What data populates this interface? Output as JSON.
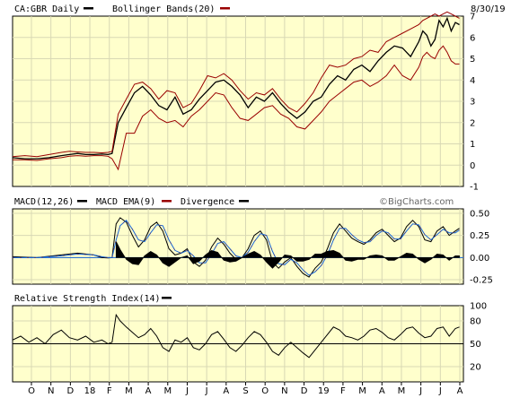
{
  "header": {
    "symbol_label": "CA:GBR Daily",
    "bollinger_label": "Bollinger Bands(20)",
    "date_label": "8/30/19"
  },
  "branding": "©BigCharts.com",
  "colors": {
    "panel_bg": "#ffffcc",
    "grid": "#d8d8b4",
    "price": "#000000",
    "bollinger": "#990000",
    "macd": "#000000",
    "macd_ema": "#1565d8",
    "macd_ema_alt": "#990000",
    "histogram": "#000000"
  },
  "chart_data": [
    {
      "type": "line",
      "panel": "price",
      "title": "CA:GBR Daily",
      "x_ticks": [
        "O",
        "N",
        "D",
        "18",
        "F",
        "M",
        "A",
        "M",
        "J",
        "J",
        "A",
        "S",
        "O",
        "N",
        "D",
        "19",
        "F",
        "M",
        "A",
        "M",
        "J",
        "J",
        "A"
      ],
      "ylim": [
        -1,
        7
      ],
      "y_ticks": [
        -1,
        0,
        1,
        2,
        3,
        4,
        5,
        6,
        7
      ],
      "grid": true,
      "series": [
        {
          "name": "CA:GBR Daily",
          "color": "#000000",
          "x": [
            0,
            3,
            6,
            9,
            12,
            14,
            16,
            18,
            20,
            22,
            23.5,
            24.5,
            26,
            28,
            30,
            32,
            34,
            36,
            38,
            40,
            42,
            44,
            46,
            48,
            50,
            52,
            54,
            56,
            58,
            60,
            62,
            64,
            66,
            68,
            70,
            72,
            74,
            76,
            78,
            80,
            82,
            84,
            86,
            88,
            90,
            92,
            94,
            96,
            98,
            100,
            101,
            102,
            103,
            104,
            105,
            106,
            107,
            108,
            109,
            110
          ],
          "y": [
            0.35,
            0.3,
            0.3,
            0.35,
            0.45,
            0.5,
            0.55,
            0.5,
            0.5,
            0.52,
            0.5,
            0.55,
            2.0,
            2.7,
            3.4,
            3.7,
            3.3,
            2.8,
            2.6,
            3.2,
            2.4,
            2.6,
            3.1,
            3.5,
            3.9,
            4.0,
            3.7,
            3.3,
            2.7,
            3.2,
            3.0,
            3.4,
            2.9,
            2.5,
            2.2,
            2.5,
            3.0,
            3.2,
            3.8,
            4.2,
            4.0,
            4.5,
            4.7,
            4.4,
            4.9,
            5.3,
            5.6,
            5.5,
            5.1,
            5.8,
            6.3,
            6.1,
            5.6,
            5.9,
            6.8,
            6.5,
            6.9,
            6.3,
            6.7,
            6.6
          ]
        },
        {
          "name": "Bollinger Bands(20)",
          "color": "#990000",
          "x": [
            0,
            3,
            6,
            9,
            12,
            14,
            16,
            18,
            20,
            22,
            23.5,
            24.5,
            26,
            28,
            30,
            32,
            34,
            36,
            38,
            40,
            42,
            44,
            46,
            48,
            50,
            52,
            54,
            56,
            58,
            60,
            62,
            64,
            66,
            68,
            70,
            72,
            74,
            76,
            78,
            80,
            82,
            84,
            86,
            88,
            90,
            92,
            94,
            96,
            98,
            100,
            101,
            102,
            103,
            104,
            105,
            106,
            107,
            108,
            109,
            110
          ],
          "y": [
            0.4,
            0.45,
            0.4,
            0.5,
            0.6,
            0.65,
            0.62,
            0.6,
            0.6,
            0.58,
            0.6,
            0.65,
            2.4,
            3.1,
            3.8,
            3.9,
            3.6,
            3.1,
            3.5,
            3.4,
            2.7,
            2.9,
            3.5,
            4.2,
            4.1,
            4.3,
            4.0,
            3.5,
            3.1,
            3.4,
            3.3,
            3.6,
            3.1,
            2.7,
            2.5,
            2.9,
            3.4,
            4.1,
            4.7,
            4.6,
            4.7,
            5.0,
            5.1,
            5.4,
            5.3,
            5.8,
            6.0,
            6.2,
            6.4,
            6.6,
            6.8,
            6.9,
            7.0,
            7.1,
            7.0,
            7.1,
            7.2,
            7.1,
            7.0,
            6.9
          ]
        },
        {
          "name": "Bollinger Bands(20) lower",
          "color": "#990000",
          "x": [
            0,
            3,
            6,
            9,
            12,
            14,
            16,
            18,
            20,
            22,
            23.5,
            24.5,
            26,
            28,
            30,
            32,
            34,
            36,
            38,
            40,
            42,
            44,
            46,
            48,
            50,
            52,
            54,
            56,
            58,
            60,
            62,
            64,
            66,
            68,
            70,
            72,
            74,
            76,
            78,
            80,
            82,
            84,
            86,
            88,
            90,
            92,
            94,
            96,
            98,
            100,
            101,
            102,
            103,
            104,
            105,
            106,
            107,
            108,
            109,
            110
          ],
          "y": [
            0.25,
            0.25,
            0.22,
            0.3,
            0.35,
            0.42,
            0.45,
            0.42,
            0.45,
            0.45,
            0.42,
            0.3,
            -0.2,
            1.5,
            1.5,
            2.3,
            2.6,
            2.2,
            2.0,
            2.1,
            1.8,
            2.3,
            2.6,
            3.0,
            3.4,
            3.3,
            2.7,
            2.2,
            2.1,
            2.4,
            2.7,
            2.8,
            2.4,
            2.2,
            1.8,
            1.7,
            2.1,
            2.5,
            3.0,
            3.3,
            3.6,
            3.9,
            4.0,
            3.7,
            3.9,
            4.2,
            4.7,
            4.2,
            4.0,
            4.6,
            5.1,
            5.3,
            5.1,
            5.0,
            5.4,
            5.6,
            5.3,
            4.9,
            4.75,
            4.75
          ]
        }
      ]
    },
    {
      "type": "line",
      "panel": "macd",
      "title": "MACD(12,26)",
      "ylim": [
        -0.3,
        0.55
      ],
      "y_ticks": [
        -0.25,
        0.0,
        0.25,
        0.5
      ],
      "y_tick_labels": [
        "-0.25",
        "0.00",
        "0.25",
        "0.50"
      ],
      "grid": true,
      "series": [
        {
          "name": "MACD(12,26)",
          "color": "#000000",
          "x": [
            0,
            6,
            12,
            16,
            20,
            22,
            23.5,
            24.5,
            25.5,
            26.5,
            28,
            29.5,
            31,
            32.5,
            34,
            35.5,
            37,
            38.5,
            40,
            41.5,
            43,
            44.5,
            46,
            47.5,
            49,
            50.5,
            52,
            53.5,
            55,
            56.5,
            58,
            59.5,
            61,
            62.5,
            64,
            65.5,
            67,
            68.5,
            70,
            71.5,
            73,
            74.5,
            76,
            77.5,
            79,
            80.5,
            82,
            83.5,
            85,
            86.5,
            88,
            89.5,
            91,
            92.5,
            94,
            95.5,
            97,
            98.5,
            100,
            101.5,
            103,
            104.5,
            106,
            107.5,
            109,
            110
          ],
          "y": [
            0.01,
            0.0,
            0.03,
            0.05,
            0.03,
            0.0,
            -0.005,
            0.0,
            0.38,
            0.45,
            0.4,
            0.25,
            0.12,
            0.2,
            0.35,
            0.4,
            0.3,
            0.1,
            0.03,
            0.05,
            0.1,
            -0.05,
            -0.1,
            -0.03,
            0.12,
            0.22,
            0.15,
            0.05,
            -0.02,
            0.0,
            0.1,
            0.25,
            0.3,
            0.2,
            -0.05,
            -0.12,
            -0.05,
            0.0,
            -0.1,
            -0.18,
            -0.22,
            -0.12,
            -0.05,
            0.1,
            0.28,
            0.38,
            0.3,
            0.22,
            0.18,
            0.15,
            0.2,
            0.28,
            0.32,
            0.25,
            0.18,
            0.22,
            0.35,
            0.42,
            0.35,
            0.2,
            0.18,
            0.3,
            0.35,
            0.25,
            0.3,
            0.33
          ]
        },
        {
          "name": "MACD EMA(9)",
          "color": "#1565d8",
          "x": [
            0,
            6,
            12,
            16,
            20,
            22,
            23.5,
            24.5,
            25.5,
            26.5,
            28,
            29.5,
            31,
            32.5,
            34,
            35.5,
            37,
            38.5,
            40,
            41.5,
            43,
            44.5,
            46,
            47.5,
            49,
            50.5,
            52,
            53.5,
            55,
            56.5,
            58,
            59.5,
            61,
            62.5,
            64,
            65.5,
            67,
            68.5,
            70,
            71.5,
            73,
            74.5,
            76,
            77.5,
            79,
            80.5,
            82,
            83.5,
            85,
            86.5,
            88,
            89.5,
            91,
            92.5,
            94,
            95.5,
            97,
            98.5,
            100,
            101.5,
            103,
            104.5,
            106,
            107.5,
            109,
            110
          ],
          "y": [
            0.0,
            0.0,
            0.02,
            0.04,
            0.03,
            0.01,
            0.0,
            0.0,
            0.2,
            0.36,
            0.42,
            0.32,
            0.2,
            0.18,
            0.28,
            0.37,
            0.36,
            0.2,
            0.08,
            0.05,
            0.08,
            0.02,
            -0.06,
            -0.06,
            0.04,
            0.16,
            0.18,
            0.1,
            0.02,
            0.0,
            0.06,
            0.18,
            0.27,
            0.25,
            0.07,
            -0.07,
            -0.08,
            -0.02,
            -0.06,
            -0.14,
            -0.2,
            -0.16,
            -0.09,
            0.03,
            0.2,
            0.33,
            0.33,
            0.26,
            0.2,
            0.17,
            0.18,
            0.25,
            0.3,
            0.28,
            0.21,
            0.21,
            0.3,
            0.38,
            0.37,
            0.26,
            0.2,
            0.26,
            0.32,
            0.28,
            0.28,
            0.31
          ]
        },
        {
          "name": "Divergence",
          "color": "#000000",
          "style": "histogram",
          "x": [
            25.5,
            26.5,
            28,
            29.5,
            31,
            32.5,
            34,
            35.5,
            37,
            38.5,
            40,
            41.5,
            43,
            44.5,
            46,
            47.5,
            49,
            50.5,
            52,
            53.5,
            55,
            56.5,
            58,
            59.5,
            61,
            62.5,
            64,
            65.5,
            67,
            68.5,
            70,
            71.5,
            73,
            74.5,
            76,
            77.5,
            79,
            80.5,
            82,
            83.5,
            85,
            86.5,
            88,
            89.5,
            91,
            92.5,
            94,
            95.5,
            97,
            98.5,
            100,
            101.5,
            103,
            104.5,
            106,
            107.5,
            109,
            110
          ],
          "y": [
            0.18,
            0.09,
            -0.02,
            -0.07,
            -0.08,
            0.02,
            0.07,
            0.03,
            -0.06,
            -0.1,
            -0.05,
            0.0,
            0.02,
            -0.07,
            -0.04,
            0.03,
            0.08,
            0.06,
            -0.03,
            -0.05,
            -0.04,
            0.0,
            0.04,
            0.07,
            0.03,
            -0.05,
            -0.12,
            -0.05,
            0.03,
            0.02,
            -0.04,
            -0.04,
            -0.02,
            0.04,
            0.04,
            0.07,
            0.08,
            0.05,
            -0.03,
            -0.04,
            -0.02,
            -0.02,
            0.02,
            0.03,
            0.02,
            -0.03,
            -0.03,
            0.01,
            0.05,
            0.04,
            -0.02,
            -0.06,
            -0.02,
            0.04,
            0.03,
            -0.03,
            0.02,
            0.02
          ]
        }
      ]
    },
    {
      "type": "line",
      "panel": "rsi",
      "title": "Relative Strength Index(14)",
      "ylim": [
        0,
        100
      ],
      "y_ticks": [
        20,
        50,
        80,
        100
      ],
      "grid": true,
      "series": [
        {
          "name": "Relative Strength Index(14)",
          "color": "#000000",
          "x": [
            0,
            2,
            4,
            6,
            8,
            10,
            12,
            14,
            16,
            18,
            20,
            22,
            23.5,
            24.5,
            25.5,
            26.5,
            28,
            29.5,
            31,
            32.5,
            34,
            35.5,
            37,
            38.5,
            40,
            41.5,
            43,
            44.5,
            46,
            47.5,
            49,
            50.5,
            52,
            53.5,
            55,
            56.5,
            58,
            59.5,
            61,
            62.5,
            64,
            65.5,
            67,
            68.5,
            70,
            71.5,
            73,
            74.5,
            76,
            77.5,
            79,
            80.5,
            82,
            83.5,
            85,
            86.5,
            88,
            89.5,
            91,
            92.5,
            94,
            95.5,
            97,
            98.5,
            100,
            101.5,
            103,
            104.5,
            106,
            107.5,
            109,
            110
          ],
          "y": [
            55,
            60,
            52,
            58,
            50,
            62,
            68,
            58,
            55,
            60,
            52,
            55,
            50,
            52,
            88,
            80,
            72,
            65,
            58,
            62,
            70,
            60,
            45,
            40,
            55,
            52,
            58,
            45,
            42,
            50,
            62,
            66,
            56,
            45,
            40,
            48,
            58,
            66,
            62,
            52,
            40,
            35,
            45,
            52,
            45,
            38,
            32,
            42,
            52,
            62,
            72,
            68,
            60,
            58,
            55,
            60,
            68,
            70,
            65,
            58,
            55,
            62,
            70,
            72,
            64,
            58,
            60,
            70,
            72,
            60,
            70,
            72
          ]
        }
      ]
    }
  ],
  "panels": {
    "macd": {
      "label": "MACD(12,26)",
      "ema_label": "MACD EMA(9)",
      "div_label": "Divergence"
    },
    "rsi": {
      "label": "Relative Strength Index(14)"
    }
  }
}
